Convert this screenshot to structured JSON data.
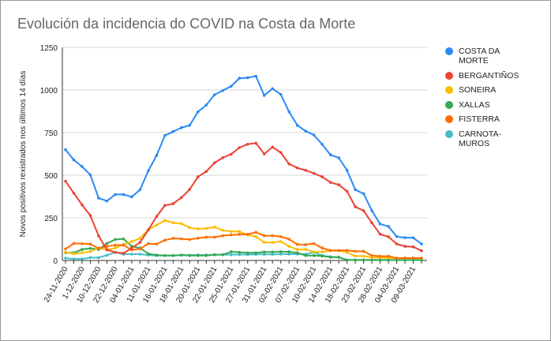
{
  "chart_data": {
    "type": "line",
    "title": "Evolución da incidencia do COVID na Costa da Morte",
    "xlabel": "",
    "ylabel": "Novos positivos rexistrados nos últimos 14 días",
    "ylim": [
      0,
      1250
    ],
    "yticks": [
      0,
      250,
      500,
      750,
      1000,
      1250
    ],
    "grid": true,
    "legend": "right",
    "categories": [
      "24-11-2020",
      "",
      "1-12-2020",
      "",
      "10-12-2020",
      "",
      "22-12-2020",
      "",
      "04-01-2021",
      "",
      "11-01-2021",
      "",
      "16-01-2021",
      "",
      "18-01-2021",
      "",
      "20-01-2021",
      "",
      "22-01-2021",
      "",
      "25-01-2021",
      "",
      "27-01-2021",
      "",
      "31-01-2021",
      "",
      "02-02-2021",
      "",
      "07-02-2021",
      "",
      "10-02-2021",
      "",
      "14-02-2021",
      "",
      "18-02-2021",
      "",
      "23-02-2021",
      "",
      "28-02-2021",
      "",
      "04-03-2021",
      "",
      "09-03-2021",
      ""
    ],
    "series": [
      {
        "name": "COSTA DA MORTE",
        "color": "#2a8af4",
        "values": [
          650,
          590,
          551,
          502,
          366,
          349,
          387,
          387,
          373,
          415,
          526,
          616,
          733,
          756,
          779,
          793,
          872,
          912,
          972,
          997,
          1022,
          1069,
          1072,
          1081,
          968,
          1008,
          974,
          872,
          793,
          759,
          736,
          681,
          620,
          602,
          529,
          415,
          392,
          292,
          214,
          200,
          140,
          134,
          133,
          97
        ]
      },
      {
        "name": "BERGANTIÑOS",
        "color": "#ea4335",
        "values": [
          465,
          395,
          326,
          264,
          144,
          63,
          48,
          42,
          73,
          106,
          179,
          258,
          323,
          333,
          369,
          417,
          491,
          522,
          573,
          603,
          623,
          662,
          682,
          688,
          625,
          665,
          633,
          566,
          543,
          529,
          511,
          491,
          458,
          444,
          406,
          315,
          292,
          221,
          154,
          139,
          97,
          83,
          80,
          57
        ]
      },
      {
        "name": "SONEIRA",
        "color": "#fbbc04",
        "values": [
          49,
          39,
          46,
          52,
          73,
          63,
          73,
          94,
          111,
          130,
          181,
          208,
          235,
          221,
          216,
          193,
          185,
          188,
          196,
          177,
          170,
          170,
          150,
          140,
          106,
          106,
          111,
          83,
          65,
          65,
          50,
          51,
          57,
          57,
          48,
          26,
          26,
          17,
          17,
          15,
          14,
          14,
          14,
          14
        ]
      },
      {
        "name": "XALLAS",
        "color": "#34a853",
        "values": [
          46,
          45,
          65,
          71,
          65,
          100,
          123,
          127,
          83,
          73,
          39,
          32,
          29,
          29,
          32,
          29,
          29,
          29,
          34,
          34,
          51,
          48,
          45,
          45,
          50,
          50,
          51,
          51,
          45,
          29,
          29,
          26,
          19,
          19,
          3,
          3,
          3,
          3,
          3,
          3,
          3,
          3,
          3,
          3
        ]
      },
      {
        "name": "FISTERRA",
        "color": "#ff6d01",
        "values": [
          68,
          100,
          99,
          96,
          71,
          83,
          90,
          90,
          62,
          68,
          99,
          96,
          119,
          130,
          127,
          123,
          131,
          137,
          137,
          145,
          150,
          153,
          154,
          165,
          145,
          145,
          140,
          125,
          94,
          93,
          99,
          73,
          59,
          59,
          59,
          54,
          54,
          29,
          25,
          25,
          14,
          14,
          14,
          14
        ]
      },
      {
        "name": "CARNOTA-MUROS",
        "color": "#46bdc6",
        "values": [
          14,
          9,
          9,
          17,
          17,
          31,
          48,
          37,
          37,
          37,
          32,
          29,
          29,
          29,
          31,
          31,
          32,
          32,
          33,
          34,
          34,
          35,
          35,
          36,
          36,
          36,
          37,
          37,
          37,
          37,
          48,
          29,
          22,
          19,
          3,
          3,
          3,
          3,
          3,
          3,
          3,
          3,
          3,
          3
        ]
      }
    ]
  }
}
